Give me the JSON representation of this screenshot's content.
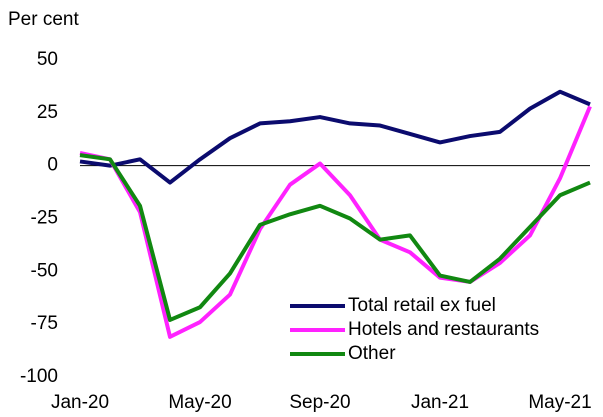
{
  "chart_data": {
    "type": "line",
    "ylabel": "Per cent",
    "categories": [
      "Jan-20",
      null,
      null,
      null,
      "May-20",
      null,
      null,
      null,
      "Sep-20",
      null,
      null,
      null,
      "Jan-21",
      null,
      null,
      null,
      "May-21",
      null
    ],
    "series": [
      {
        "name": "Total retail ex fuel",
        "color": "#0b0b6e",
        "values": [
          2,
          0,
          3,
          -8,
          3,
          13,
          20,
          21,
          23,
          20,
          19,
          15,
          11,
          14,
          16,
          27,
          35,
          29
        ]
      },
      {
        "name": "Hotels and restaurants",
        "color": "#ff22ff",
        "values": [
          6,
          3,
          -22,
          -81,
          -74,
          -61,
          -30,
          -9,
          1,
          -14,
          -35,
          -41,
          -53,
          -55,
          -46,
          -33,
          -6,
          28
        ]
      },
      {
        "name": "Other",
        "color": "#118811",
        "values": [
          5,
          3,
          -19,
          -73,
          -67,
          -51,
          -28,
          -23,
          -19,
          -25,
          -35,
          -33,
          -52,
          -55,
          -44,
          -29,
          -14,
          -8
        ]
      }
    ],
    "ylim": [
      -100,
      50
    ],
    "yticks": [
      -100,
      -75,
      -50,
      -25,
      0,
      25,
      50
    ]
  }
}
